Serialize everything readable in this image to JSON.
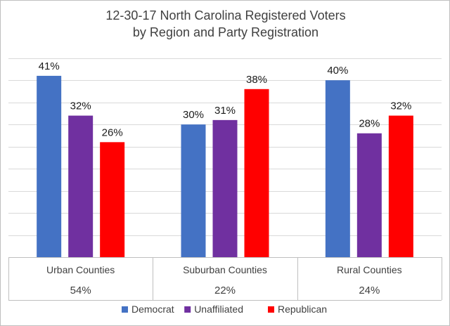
{
  "chart_data": {
    "type": "bar",
    "title": [
      "12-30-17 North Carolina Registered Voters",
      "by Region and Party Registration"
    ],
    "categories": [
      "Urban Counties",
      "Suburban Counties",
      "Rural Counties"
    ],
    "category_shares": [
      "54%",
      "22%",
      "24%"
    ],
    "series": [
      {
        "name": "Democrat",
        "color": "#4472c4",
        "values": [
          41,
          30,
          40
        ],
        "labels": [
          "41%",
          "30%",
          "40%"
        ]
      },
      {
        "name": "Unaffiliated",
        "color": "#7030a0",
        "values": [
          32,
          31,
          28
        ],
        "labels": [
          "32%",
          "31%",
          "28%"
        ]
      },
      {
        "name": "Republican",
        "color": "#ff0000",
        "values": [
          26,
          38,
          32
        ],
        "labels": [
          "26%",
          "38%",
          "32%"
        ]
      }
    ],
    "ylim": [
      0,
      47.5
    ],
    "y_gridlines": [
      0,
      5,
      10,
      15,
      20,
      25,
      30,
      35,
      40,
      45
    ],
    "y_tick_labels_shown": false,
    "grid": true,
    "legend": "bottom"
  }
}
